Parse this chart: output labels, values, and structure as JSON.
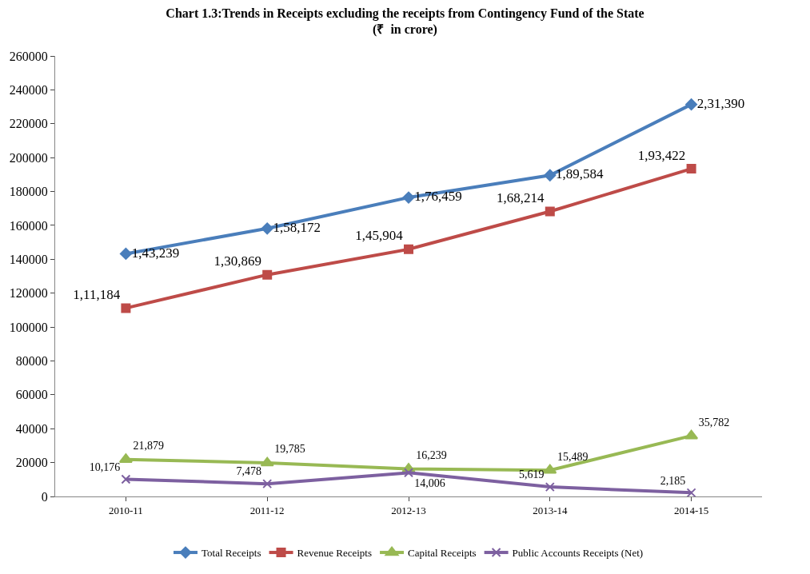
{
  "chart_data": {
    "type": "line",
    "title": "Chart 1.3:Trends in Receipts excluding the receipts from Contingency Fund of the State",
    "subtitle": "(₹  in crore)",
    "categories": [
      "2010-11",
      "2011-12",
      "2012-13",
      "2013-14",
      "2014-15"
    ],
    "series": [
      {
        "name": "Total Receipts",
        "color": "#4a7ebb",
        "marker": "diamond",
        "values": [
          143239,
          158172,
          176459,
          189584,
          231390
        ],
        "value_labels": [
          "1,43,239",
          "1,58,172",
          "1,76,459",
          "1,89,584",
          "2,31,390"
        ]
      },
      {
        "name": "Revenue Receipts",
        "color": "#be4b48",
        "marker": "square",
        "values": [
          111184,
          130869,
          145904,
          168214,
          193422
        ],
        "value_labels": [
          "1,11,184",
          "1,30,869",
          "1,45,904",
          "1,68,214",
          "1,93,422"
        ]
      },
      {
        "name": "Capital Receipts",
        "color": "#98b954",
        "marker": "triangle",
        "values": [
          21879,
          19785,
          16239,
          15489,
          35782
        ],
        "value_labels": [
          "21,879",
          "19,785",
          "16,239",
          "15,489",
          "35,782"
        ]
      },
      {
        "name": "Public Accounts Receipts (Net)",
        "color": "#7d60a0",
        "marker": "cross",
        "values": [
          10176,
          7478,
          14006,
          5619,
          2185
        ],
        "value_labels": [
          "10,176",
          "7,478",
          "14,006",
          "5,619",
          "2,185"
        ]
      }
    ],
    "ylim": [
      0,
      260000
    ],
    "yticks": [
      0,
      20000,
      40000,
      60000,
      80000,
      100000,
      120000,
      140000,
      160000,
      180000,
      200000,
      220000,
      240000,
      260000
    ],
    "legend": "bottom",
    "line_style": "solid"
  }
}
